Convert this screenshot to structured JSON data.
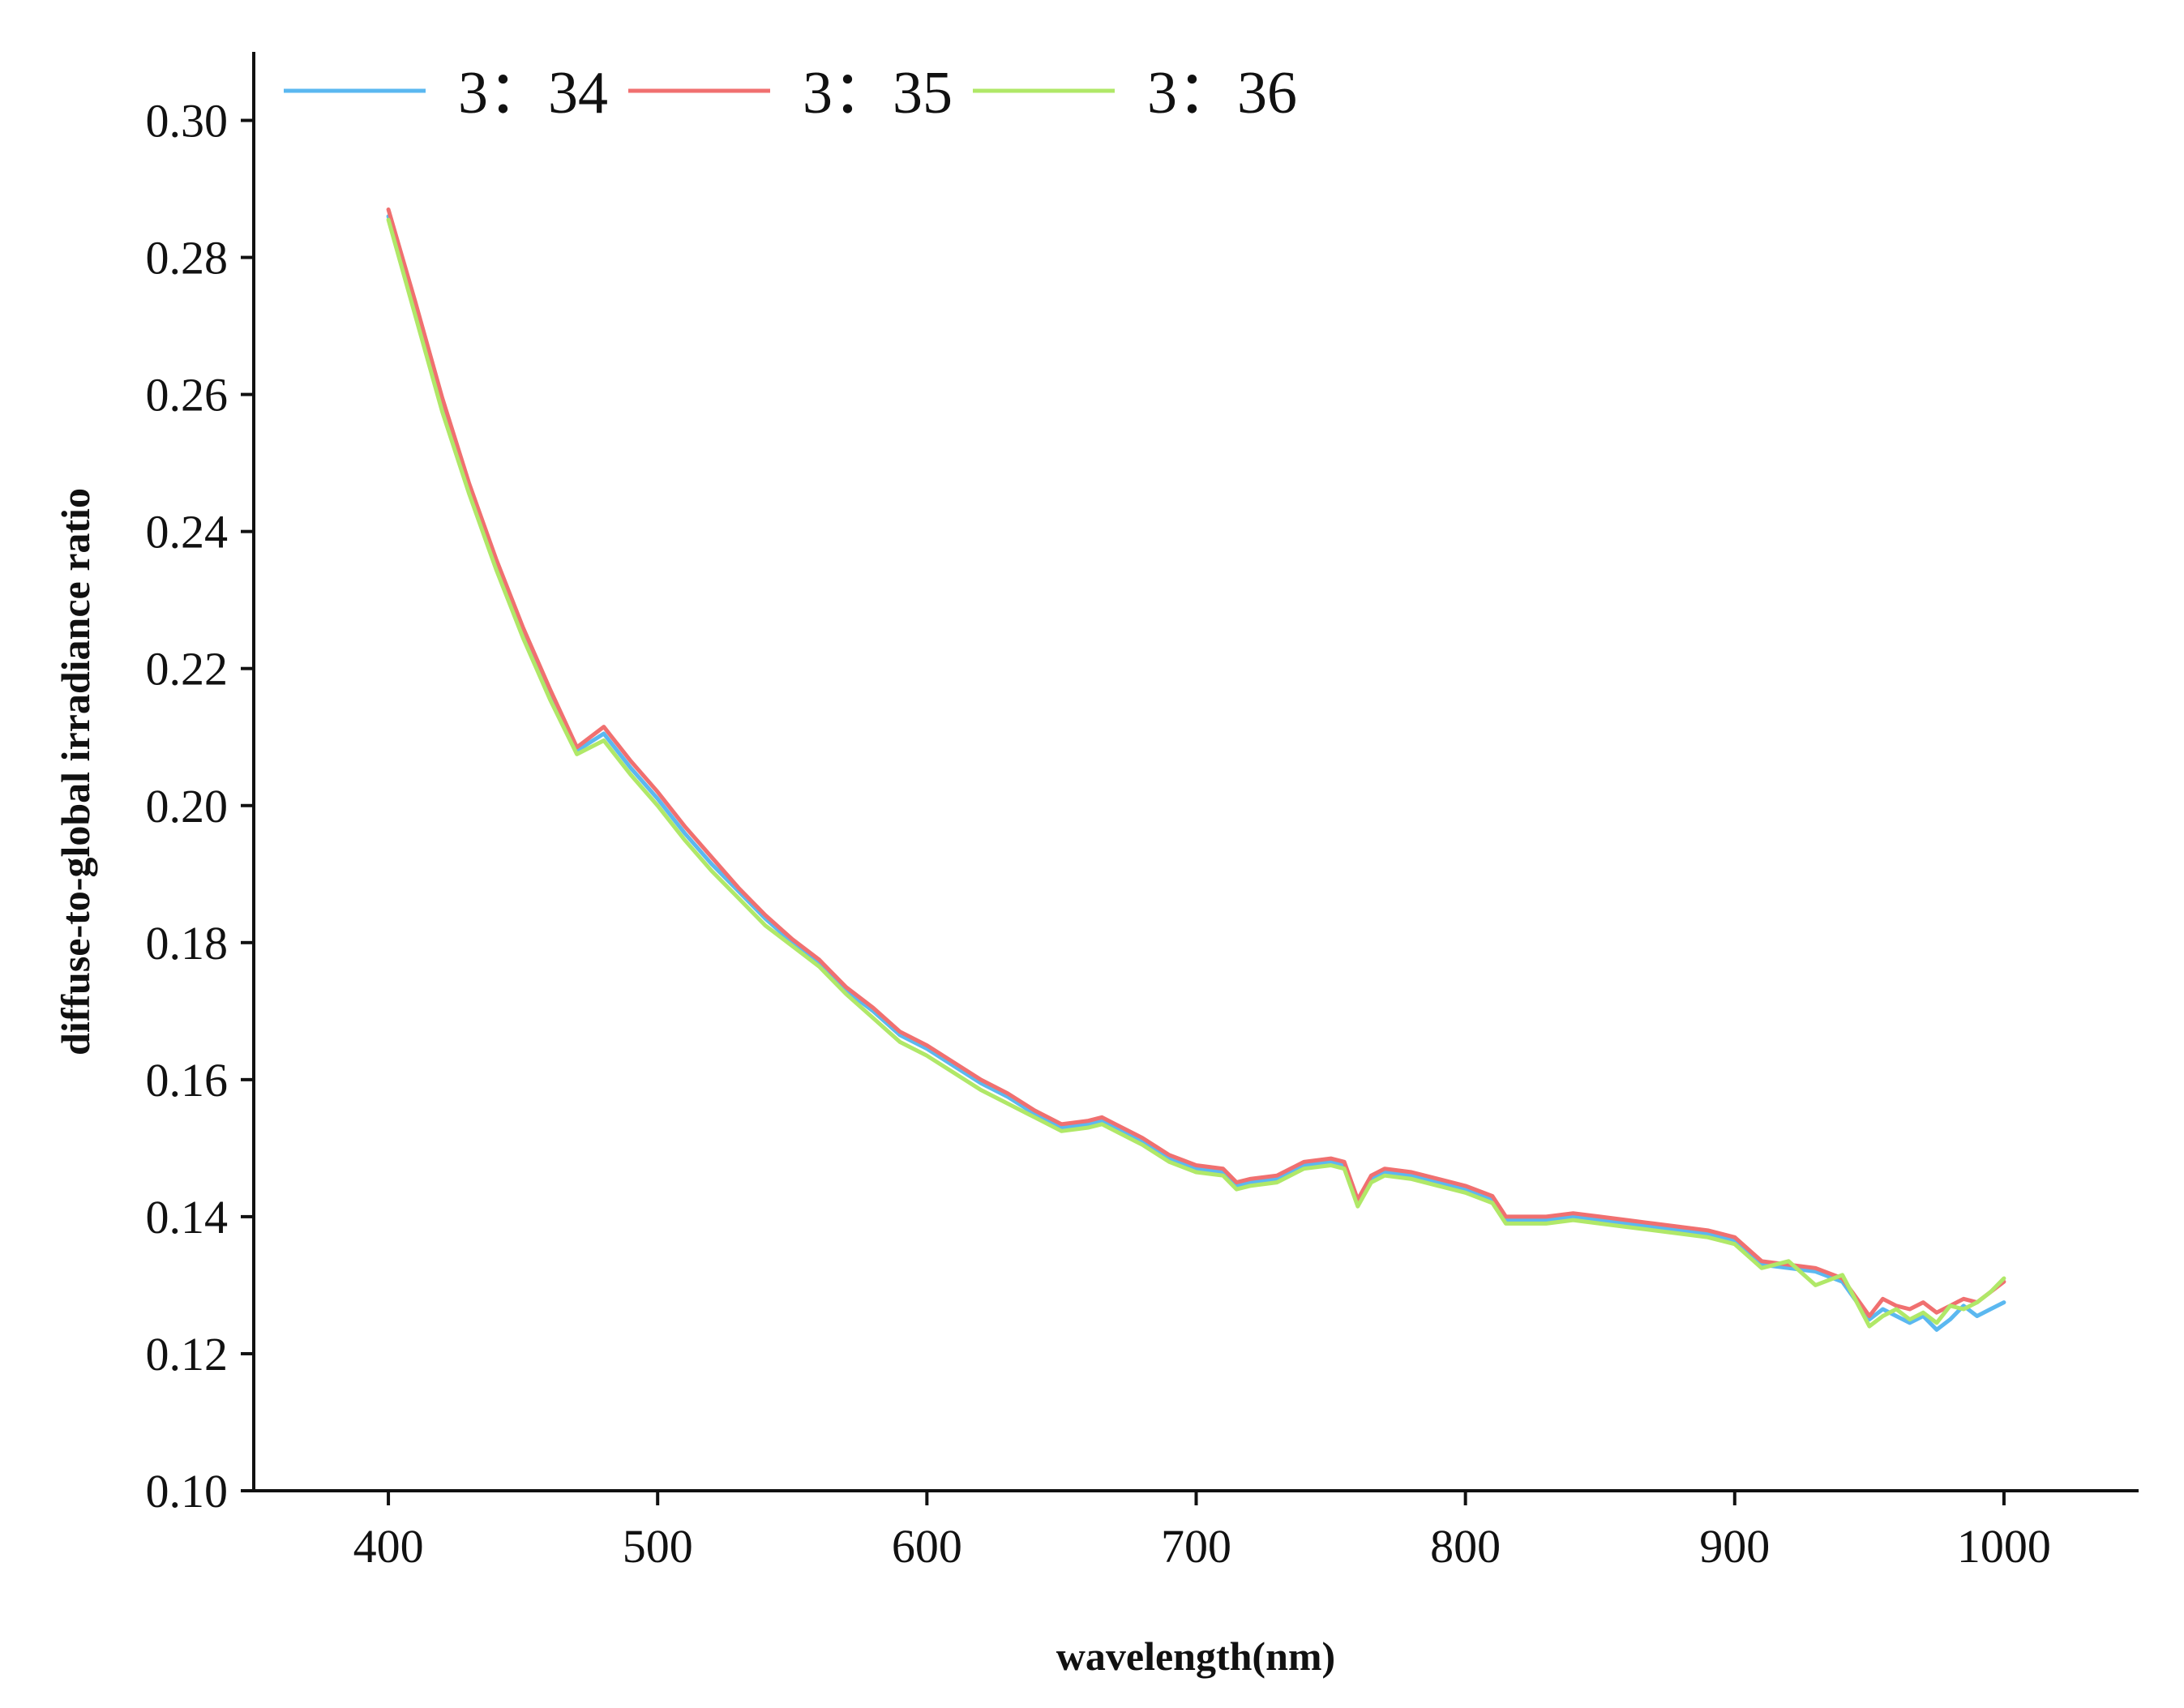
{
  "chart_data": {
    "type": "line",
    "title": "",
    "xlabel": "wavelength(nm)",
    "ylabel": "diffuse-to-global irradiance ratio",
    "xlim": [
      350,
      1050
    ],
    "ylim": [
      0.1,
      0.31
    ],
    "xticks": [
      400,
      500,
      600,
      700,
      800,
      900,
      1000
    ],
    "xtick_labels": [
      "400",
      "500",
      "600",
      "700",
      "800",
      "900",
      "1000"
    ],
    "yticks": [
      0.1,
      0.12,
      0.14,
      0.16,
      0.18,
      0.2,
      0.22,
      0.24,
      0.26,
      0.28,
      0.3
    ],
    "ytick_labels": [
      "0.10",
      "0.12",
      "0.14",
      "0.16",
      "0.18",
      "0.20",
      "0.22",
      "0.24",
      "0.26",
      "0.28",
      "0.30"
    ],
    "grid": false,
    "legend_position": "top-left",
    "x": [
      400,
      410,
      420,
      430,
      440,
      450,
      460,
      470,
      480,
      490,
      500,
      510,
      520,
      530,
      540,
      550,
      560,
      570,
      580,
      590,
      600,
      610,
      620,
      630,
      640,
      650,
      660,
      665,
      670,
      680,
      690,
      700,
      710,
      715,
      720,
      730,
      740,
      750,
      755,
      760,
      765,
      770,
      780,
      790,
      800,
      810,
      815,
      820,
      830,
      840,
      850,
      860,
      870,
      880,
      890,
      900,
      910,
      920,
      930,
      940,
      950,
      955,
      960,
      965,
      970,
      975,
      980,
      985,
      990,
      995,
      1000
    ],
    "series": [
      {
        "name": "3：34",
        "color": "#5bb8f0",
        "values": [
          0.286,
          0.272,
          0.258,
          0.246,
          0.235,
          0.225,
          0.216,
          0.208,
          0.2105,
          0.2055,
          0.201,
          0.196,
          0.1915,
          0.1875,
          0.1835,
          0.18,
          0.177,
          0.173,
          0.17,
          0.1665,
          0.1645,
          0.162,
          0.1595,
          0.1575,
          0.155,
          0.153,
          0.1535,
          0.154,
          0.153,
          0.151,
          0.1485,
          0.147,
          0.1465,
          0.1445,
          0.145,
          0.1455,
          0.1475,
          0.148,
          0.1475,
          0.142,
          0.1455,
          0.1465,
          0.146,
          0.145,
          0.144,
          0.1425,
          0.1395,
          0.1395,
          0.1395,
          0.14,
          0.1395,
          0.139,
          0.1385,
          0.138,
          0.1375,
          0.1365,
          0.133,
          0.1325,
          0.132,
          0.1305,
          0.125,
          0.1265,
          0.1255,
          0.1245,
          0.1255,
          0.1235,
          0.125,
          0.127,
          0.1255,
          0.1265,
          0.1275
        ]
      },
      {
        "name": "3：35",
        "color": "#f07070",
        "values": [
          0.287,
          0.2735,
          0.2595,
          0.247,
          0.236,
          0.226,
          0.217,
          0.2085,
          0.2115,
          0.2065,
          0.202,
          0.197,
          0.1925,
          0.188,
          0.184,
          0.1805,
          0.1775,
          0.1735,
          0.1705,
          0.167,
          0.165,
          0.1625,
          0.16,
          0.158,
          0.1555,
          0.1535,
          0.154,
          0.1545,
          0.1535,
          0.1515,
          0.149,
          0.1475,
          0.147,
          0.145,
          0.1455,
          0.146,
          0.148,
          0.1485,
          0.148,
          0.1425,
          0.146,
          0.147,
          0.1465,
          0.1455,
          0.1445,
          0.143,
          0.14,
          0.14,
          0.14,
          0.1405,
          0.14,
          0.1395,
          0.139,
          0.1385,
          0.138,
          0.137,
          0.1335,
          0.133,
          0.1325,
          0.131,
          0.1255,
          0.128,
          0.127,
          0.1265,
          0.1275,
          0.126,
          0.127,
          0.128,
          0.1275,
          0.129,
          0.1305
        ]
      },
      {
        "name": "3：36",
        "color": "#b0e868",
        "values": [
          0.2855,
          0.2715,
          0.2575,
          0.2455,
          0.2345,
          0.2245,
          0.2155,
          0.2075,
          0.2095,
          0.2045,
          0.2,
          0.195,
          0.1905,
          0.1865,
          0.1825,
          0.1795,
          0.1765,
          0.1725,
          0.169,
          0.1655,
          0.1635,
          0.161,
          0.1585,
          0.1565,
          0.1545,
          0.1525,
          0.153,
          0.1535,
          0.1525,
          0.1505,
          0.148,
          0.1465,
          0.146,
          0.144,
          0.1445,
          0.145,
          0.147,
          0.1475,
          0.147,
          0.1415,
          0.145,
          0.146,
          0.1455,
          0.1445,
          0.1435,
          0.142,
          0.139,
          0.139,
          0.139,
          0.1395,
          0.139,
          0.1385,
          0.138,
          0.1375,
          0.137,
          0.136,
          0.1325,
          0.1335,
          0.13,
          0.1315,
          0.124,
          0.1255,
          0.1265,
          0.125,
          0.126,
          0.1245,
          0.127,
          0.1265,
          0.1275,
          0.129,
          0.131
        ]
      }
    ]
  }
}
